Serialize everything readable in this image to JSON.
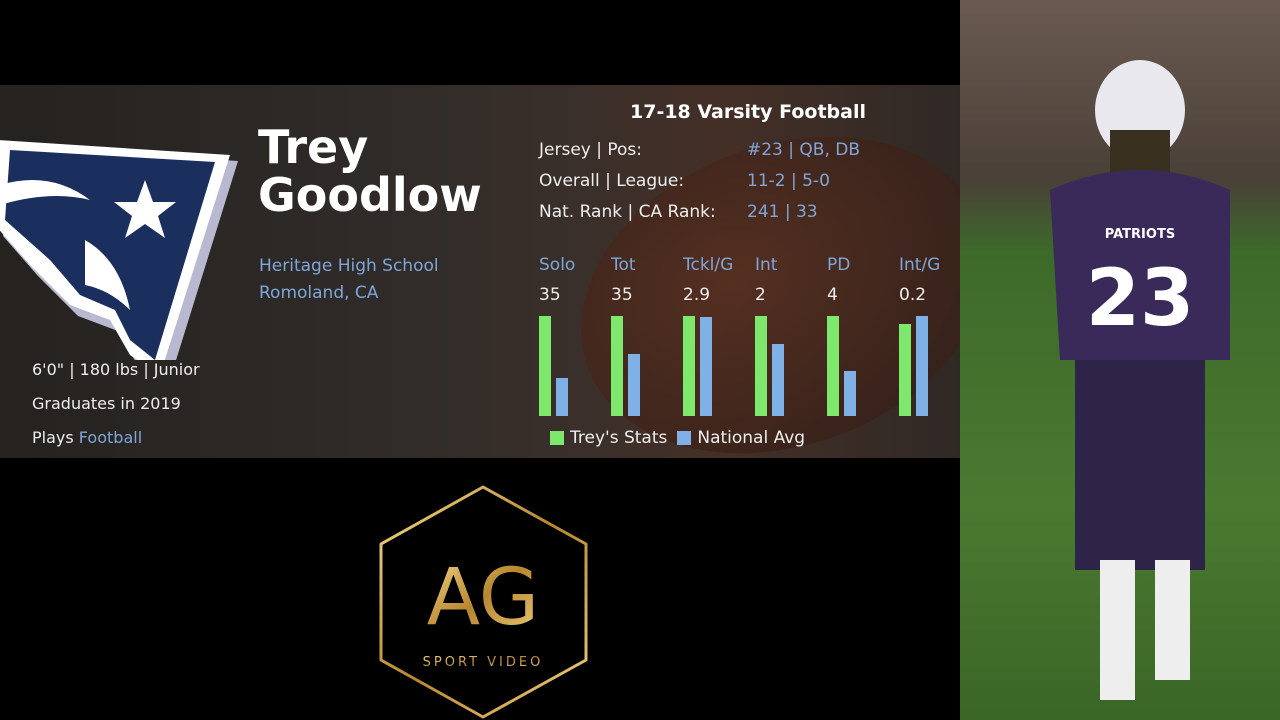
{
  "player": {
    "first_name": "Trey",
    "last_name": "Goodlow",
    "school": "Heritage High School",
    "location": "Romoland, CA",
    "measurements": "6'0\" | 180 lbs | Junior",
    "graduation": "Graduates in 2019",
    "plays_prefix": "Plays",
    "sport": "Football"
  },
  "season": {
    "title": "17-18 Varsity Football",
    "rows": [
      {
        "label": "Jersey | Pos:",
        "value": "#23 | QB, DB"
      },
      {
        "label": "Overall | League:",
        "value": "11-2 | 5-0"
      },
      {
        "label": "Nat. Rank | CA Rank:",
        "value": "241 | 33"
      }
    ]
  },
  "chart_data": {
    "type": "bar",
    "categories": [
      "Solo",
      "Tot",
      "Tckl/G",
      "Int",
      "PD",
      "Int/G"
    ],
    "value_labels": [
      "35",
      "35",
      "2.9",
      "2",
      "4",
      "0.2"
    ],
    "series": [
      {
        "name": "Trey's Stats",
        "color": "#7ee86c",
        "relative_percent": [
          100,
          100,
          100,
          100,
          100,
          92
        ]
      },
      {
        "name": "National Avg",
        "color": "#7fb0e6",
        "relative_percent": [
          38,
          62,
          99,
          72,
          45,
          100
        ]
      }
    ],
    "legend": "bottom"
  },
  "brand": {
    "logo_text": "AG",
    "logo_sub": "SPORT VIDEO"
  },
  "photo": {
    "jersey_text": "PATRIOTS",
    "jersey_number": "23"
  }
}
